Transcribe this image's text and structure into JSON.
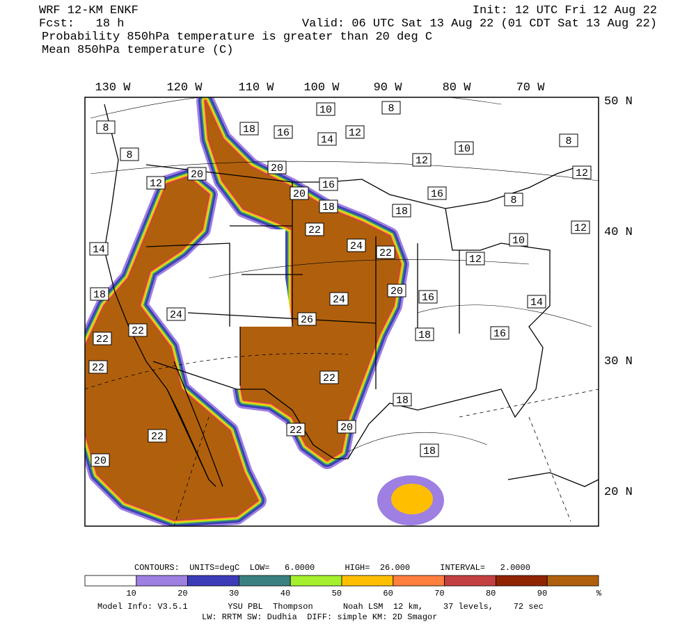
{
  "header": {
    "model": "WRF 12-KM ENKF",
    "init": "Init: 12 UTC Fri 12 Aug 22",
    "forecast": "Fcst:   18 h",
    "valid": "Valid: 06 UTC Sat 13 Aug 22 (01 CDT Sat 13 Aug 22)",
    "line1": "Probability 850hPa temperature is greater than 20 deg C",
    "line2": "Mean 850hPa temperature (C)"
  },
  "map": {
    "longitudes": [
      "130 W",
      "120 W",
      "110 W",
      "100 W",
      "90 W",
      "80 W",
      "70 W"
    ],
    "latitudes": [
      "50 N",
      "40 N",
      "30 N",
      "20 N"
    ],
    "contour_labels": [
      10,
      8,
      8,
      18,
      16,
      12,
      14,
      10,
      8,
      8,
      12,
      20,
      20,
      12,
      12,
      16,
      20,
      16,
      8,
      18,
      18,
      12,
      22,
      24,
      22,
      10,
      14,
      12,
      18,
      20,
      16,
      24,
      14,
      24,
      26,
      22,
      18,
      16,
      22,
      22,
      22,
      18,
      22,
      20,
      22,
      18,
      20
    ]
  },
  "colorbar": {
    "contours_info": "CONTOURS:  UNITS=degC  LOW=   6.0000      HIGH=  26.000      INTERVAL=   2.0000",
    "colors": [
      "#ffffff",
      "#9e7fe2",
      "#3c3cb8",
      "#3a8080",
      "#a4f02c",
      "#ffbf00",
      "#ff7f3f",
      "#c44040",
      "#902400",
      "#b0600c"
    ],
    "ticks": [
      10,
      20,
      30,
      40,
      50,
      60,
      70,
      80,
      90
    ],
    "unit": "%"
  },
  "footer": {
    "line1": "Model Info: V3.5.1        YSU PBL  Thompson      Noah LSM  12 km,    37 levels,    72 sec",
    "line2": "LW: RRTM SW: Dudhia  DIFF: simple KM: 2D Smagor"
  }
}
